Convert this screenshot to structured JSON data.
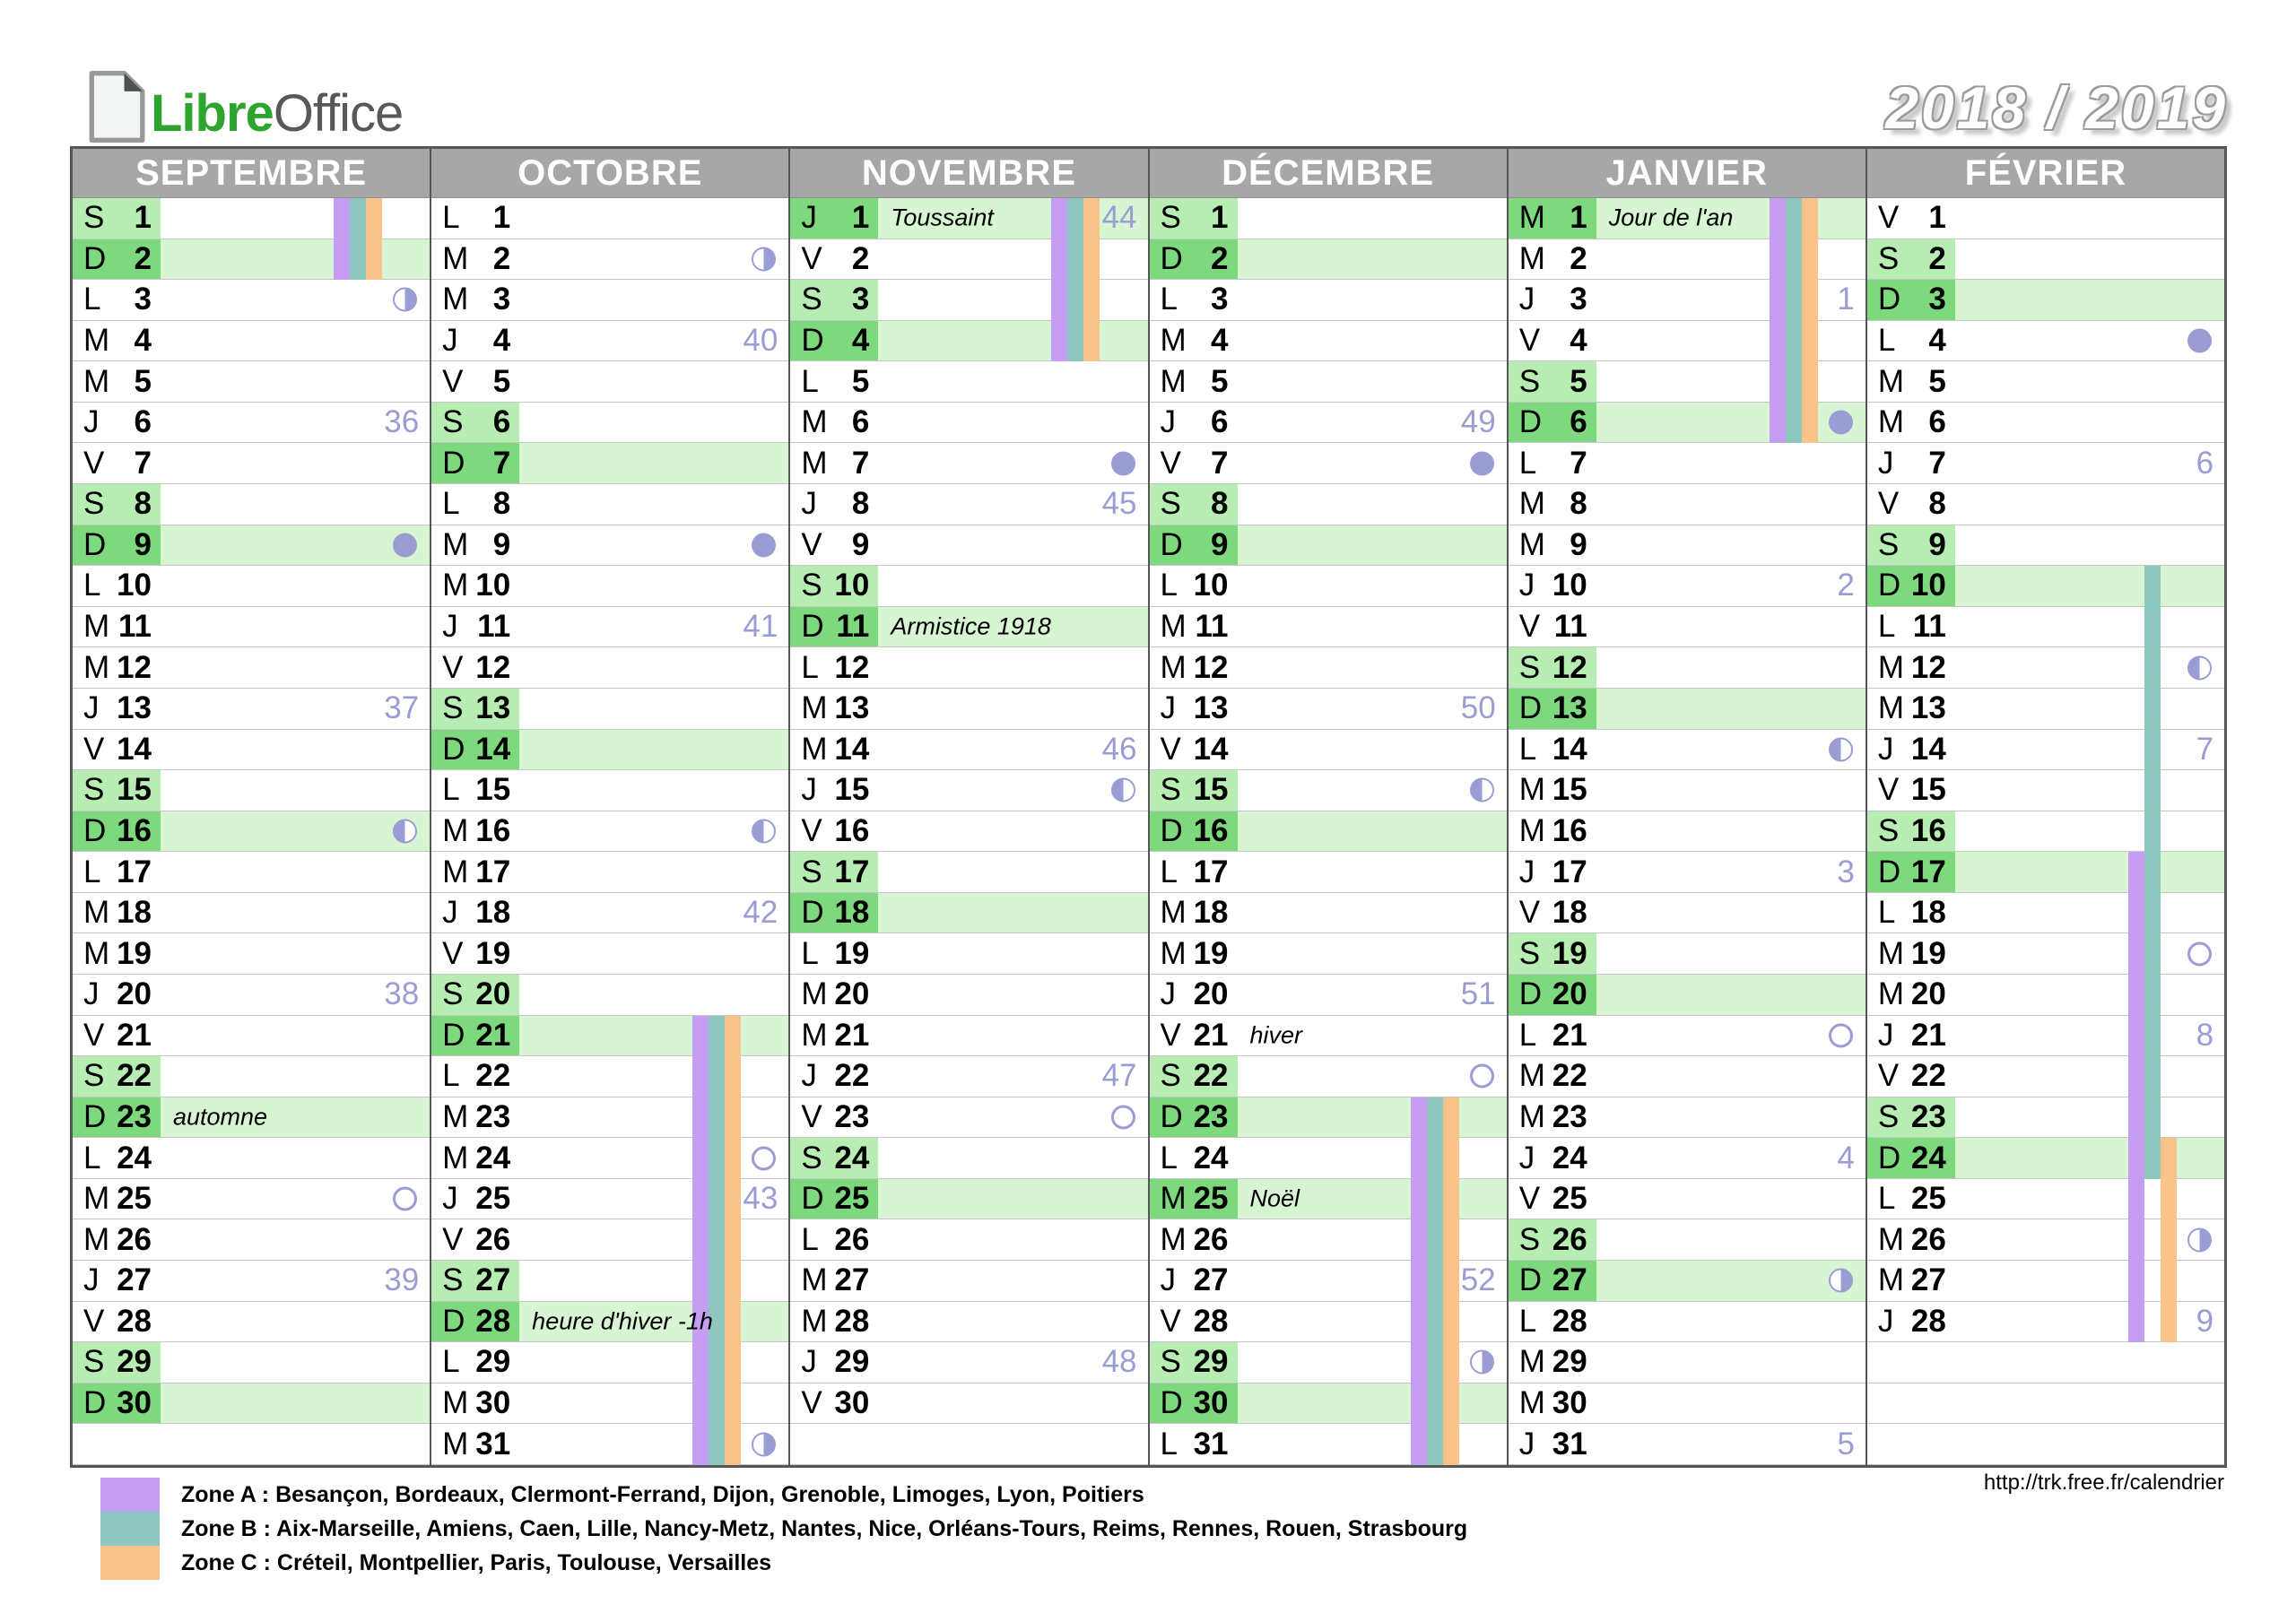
{
  "logo": {
    "libre": "Libre",
    "office": "Office"
  },
  "title": "2018 / 2019",
  "url": "http://trk.free.fr/calendrier",
  "colors": {
    "zoneA": "#c59ef1",
    "zoneB": "#8ec7c0",
    "zoneC": "#fbc38c",
    "sunday_label": "#7ed87e",
    "sunday_row": "#d7f5d2",
    "saturday_label": "#b7edb2",
    "header_bg": "#a7a7a7",
    "week_and_moon": "#999dd3"
  },
  "legend": [
    {
      "zone": "A",
      "color": "#c59ef1",
      "text": "Zone A : Besançon, Bordeaux, Clermont-Ferrand, Dijon, Grenoble, Limoges, Lyon, Poitiers"
    },
    {
      "zone": "B",
      "color": "#8ec7c0",
      "text": "Zone B : Aix-Marseille, Amiens, Caen, Lille, Nancy-Metz, Nantes, Nice, Orléans-Tours, Reims, Rennes, Rouen, Strasbourg"
    },
    {
      "zone": "C",
      "color": "#fbc38c",
      "text": "Zone C : Créteil, Montpellier, Paris, Toulouse, Versailles"
    }
  ],
  "months": [
    {
      "name": "SEPTEMBRE",
      "days": [
        {
          "d": 1,
          "w": "S"
        },
        {
          "d": 2,
          "w": "D"
        },
        {
          "d": 3,
          "w": "L",
          "moon": "last"
        },
        {
          "d": 4,
          "w": "M"
        },
        {
          "d": 5,
          "w": "M"
        },
        {
          "d": 6,
          "w": "J",
          "week": "36"
        },
        {
          "d": 7,
          "w": "V"
        },
        {
          "d": 8,
          "w": "S"
        },
        {
          "d": 9,
          "w": "D",
          "moon": "new"
        },
        {
          "d": 10,
          "w": "L"
        },
        {
          "d": 11,
          "w": "M"
        },
        {
          "d": 12,
          "w": "M"
        },
        {
          "d": 13,
          "w": "J",
          "week": "37"
        },
        {
          "d": 14,
          "w": "V"
        },
        {
          "d": 15,
          "w": "S"
        },
        {
          "d": 16,
          "w": "D",
          "moon": "first"
        },
        {
          "d": 17,
          "w": "L"
        },
        {
          "d": 18,
          "w": "M"
        },
        {
          "d": 19,
          "w": "M"
        },
        {
          "d": 20,
          "w": "J",
          "week": "38"
        },
        {
          "d": 21,
          "w": "V"
        },
        {
          "d": 22,
          "w": "S"
        },
        {
          "d": 23,
          "w": "D",
          "label": "automne"
        },
        {
          "d": 24,
          "w": "L"
        },
        {
          "d": 25,
          "w": "M",
          "moon": "full"
        },
        {
          "d": 26,
          "w": "M"
        },
        {
          "d": 27,
          "w": "J",
          "week": "39"
        },
        {
          "d": 28,
          "w": "V"
        },
        {
          "d": 29,
          "w": "S"
        },
        {
          "d": 30,
          "w": "D"
        }
      ],
      "stripes": [
        {
          "zone": "A",
          "from": 1,
          "to": 2
        },
        {
          "zone": "B",
          "from": 1,
          "to": 2
        },
        {
          "zone": "C",
          "from": 1,
          "to": 2
        }
      ]
    },
    {
      "name": "OCTOBRE",
      "days": [
        {
          "d": 1,
          "w": "L"
        },
        {
          "d": 2,
          "w": "M",
          "moon": "last"
        },
        {
          "d": 3,
          "w": "M"
        },
        {
          "d": 4,
          "w": "J",
          "week": "40"
        },
        {
          "d": 5,
          "w": "V"
        },
        {
          "d": 6,
          "w": "S"
        },
        {
          "d": 7,
          "w": "D"
        },
        {
          "d": 8,
          "w": "L"
        },
        {
          "d": 9,
          "w": "M",
          "moon": "new"
        },
        {
          "d": 10,
          "w": "M"
        },
        {
          "d": 11,
          "w": "J",
          "week": "41"
        },
        {
          "d": 12,
          "w": "V"
        },
        {
          "d": 13,
          "w": "S"
        },
        {
          "d": 14,
          "w": "D"
        },
        {
          "d": 15,
          "w": "L"
        },
        {
          "d": 16,
          "w": "M",
          "moon": "first"
        },
        {
          "d": 17,
          "w": "M"
        },
        {
          "d": 18,
          "w": "J",
          "week": "42"
        },
        {
          "d": 19,
          "w": "V"
        },
        {
          "d": 20,
          "w": "S"
        },
        {
          "d": 21,
          "w": "D"
        },
        {
          "d": 22,
          "w": "L"
        },
        {
          "d": 23,
          "w": "M"
        },
        {
          "d": 24,
          "w": "M",
          "moon": "full"
        },
        {
          "d": 25,
          "w": "J",
          "week": "43"
        },
        {
          "d": 26,
          "w": "V"
        },
        {
          "d": 27,
          "w": "S"
        },
        {
          "d": 28,
          "w": "D",
          "label": "heure d'hiver -1h"
        },
        {
          "d": 29,
          "w": "L"
        },
        {
          "d": 30,
          "w": "M"
        },
        {
          "d": 31,
          "w": "M",
          "moon": "last"
        }
      ],
      "stripes": [
        {
          "zone": "A",
          "from": 21,
          "to": 31
        },
        {
          "zone": "B",
          "from": 21,
          "to": 31
        },
        {
          "zone": "C",
          "from": 21,
          "to": 31
        }
      ]
    },
    {
      "name": "NOVEMBRE",
      "days": [
        {
          "d": 1,
          "w": "J",
          "holiday": true,
          "label": "Toussaint",
          "week": "44"
        },
        {
          "d": 2,
          "w": "V"
        },
        {
          "d": 3,
          "w": "S"
        },
        {
          "d": 4,
          "w": "D"
        },
        {
          "d": 5,
          "w": "L"
        },
        {
          "d": 6,
          "w": "M"
        },
        {
          "d": 7,
          "w": "M",
          "moon": "new"
        },
        {
          "d": 8,
          "w": "J",
          "week": "45"
        },
        {
          "d": 9,
          "w": "V"
        },
        {
          "d": 10,
          "w": "S"
        },
        {
          "d": 11,
          "w": "D",
          "label": "Armistice 1918"
        },
        {
          "d": 12,
          "w": "L"
        },
        {
          "d": 13,
          "w": "M"
        },
        {
          "d": 14,
          "w": "M",
          "week": "46"
        },
        {
          "d": 15,
          "w": "J",
          "moon": "first"
        },
        {
          "d": 16,
          "w": "V"
        },
        {
          "d": 17,
          "w": "S"
        },
        {
          "d": 18,
          "w": "D"
        },
        {
          "d": 19,
          "w": "L"
        },
        {
          "d": 20,
          "w": "M"
        },
        {
          "d": 21,
          "w": "M"
        },
        {
          "d": 22,
          "w": "J",
          "week": "47"
        },
        {
          "d": 23,
          "w": "V",
          "moon": "full"
        },
        {
          "d": 24,
          "w": "S"
        },
        {
          "d": 25,
          "w": "D"
        },
        {
          "d": 26,
          "w": "L"
        },
        {
          "d": 27,
          "w": "M"
        },
        {
          "d": 28,
          "w": "M"
        },
        {
          "d": 29,
          "w": "J",
          "week": "48"
        },
        {
          "d": 30,
          "w": "V"
        }
      ],
      "stripes": [
        {
          "zone": "A",
          "from": 1,
          "to": 4
        },
        {
          "zone": "B",
          "from": 1,
          "to": 4
        },
        {
          "zone": "C",
          "from": 1,
          "to": 4
        }
      ]
    },
    {
      "name": "DÉCEMBRE",
      "days": [
        {
          "d": 1,
          "w": "S"
        },
        {
          "d": 2,
          "w": "D"
        },
        {
          "d": 3,
          "w": "L"
        },
        {
          "d": 4,
          "w": "M"
        },
        {
          "d": 5,
          "w": "M"
        },
        {
          "d": 6,
          "w": "J",
          "week": "49"
        },
        {
          "d": 7,
          "w": "V",
          "moon": "new"
        },
        {
          "d": 8,
          "w": "S"
        },
        {
          "d": 9,
          "w": "D"
        },
        {
          "d": 10,
          "w": "L"
        },
        {
          "d": 11,
          "w": "M"
        },
        {
          "d": 12,
          "w": "M"
        },
        {
          "d": 13,
          "w": "J",
          "week": "50"
        },
        {
          "d": 14,
          "w": "V"
        },
        {
          "d": 15,
          "w": "S",
          "moon": "first"
        },
        {
          "d": 16,
          "w": "D"
        },
        {
          "d": 17,
          "w": "L"
        },
        {
          "d": 18,
          "w": "M"
        },
        {
          "d": 19,
          "w": "M"
        },
        {
          "d": 20,
          "w": "J",
          "week": "51"
        },
        {
          "d": 21,
          "w": "V",
          "label": "hiver"
        },
        {
          "d": 22,
          "w": "S",
          "moon": "full"
        },
        {
          "d": 23,
          "w": "D"
        },
        {
          "d": 24,
          "w": "L"
        },
        {
          "d": 25,
          "w": "M",
          "holiday": true,
          "label": "Noël"
        },
        {
          "d": 26,
          "w": "M"
        },
        {
          "d": 27,
          "w": "J",
          "week": "52"
        },
        {
          "d": 28,
          "w": "V"
        },
        {
          "d": 29,
          "w": "S",
          "moon": "last"
        },
        {
          "d": 30,
          "w": "D"
        },
        {
          "d": 31,
          "w": "L"
        }
      ],
      "stripes": [
        {
          "zone": "A",
          "from": 23,
          "to": 31
        },
        {
          "zone": "B",
          "from": 23,
          "to": 31
        },
        {
          "zone": "C",
          "from": 23,
          "to": 31
        }
      ]
    },
    {
      "name": "JANVIER",
      "days": [
        {
          "d": 1,
          "w": "M",
          "holiday": true,
          "label": "Jour de l'an"
        },
        {
          "d": 2,
          "w": "M"
        },
        {
          "d": 3,
          "w": "J",
          "week": "1"
        },
        {
          "d": 4,
          "w": "V"
        },
        {
          "d": 5,
          "w": "S"
        },
        {
          "d": 6,
          "w": "D",
          "moon": "new"
        },
        {
          "d": 7,
          "w": "L"
        },
        {
          "d": 8,
          "w": "M"
        },
        {
          "d": 9,
          "w": "M"
        },
        {
          "d": 10,
          "w": "J",
          "week": "2"
        },
        {
          "d": 11,
          "w": "V"
        },
        {
          "d": 12,
          "w": "S"
        },
        {
          "d": 13,
          "w": "D"
        },
        {
          "d": 14,
          "w": "L",
          "moon": "first"
        },
        {
          "d": 15,
          "w": "M"
        },
        {
          "d": 16,
          "w": "M"
        },
        {
          "d": 17,
          "w": "J",
          "week": "3"
        },
        {
          "d": 18,
          "w": "V"
        },
        {
          "d": 19,
          "w": "S"
        },
        {
          "d": 20,
          "w": "D"
        },
        {
          "d": 21,
          "w": "L",
          "moon": "full"
        },
        {
          "d": 22,
          "w": "M"
        },
        {
          "d": 23,
          "w": "M"
        },
        {
          "d": 24,
          "w": "J",
          "week": "4"
        },
        {
          "d": 25,
          "w": "V"
        },
        {
          "d": 26,
          "w": "S"
        },
        {
          "d": 27,
          "w": "D",
          "moon": "last"
        },
        {
          "d": 28,
          "w": "L"
        },
        {
          "d": 29,
          "w": "M"
        },
        {
          "d": 30,
          "w": "M"
        },
        {
          "d": 31,
          "w": "J",
          "week": "5"
        }
      ],
      "stripes": [
        {
          "zone": "A",
          "from": 1,
          "to": 6
        },
        {
          "zone": "B",
          "from": 1,
          "to": 6
        },
        {
          "zone": "C",
          "from": 1,
          "to": 6
        }
      ]
    },
    {
      "name": "FÉVRIER",
      "days": [
        {
          "d": 1,
          "w": "V"
        },
        {
          "d": 2,
          "w": "S"
        },
        {
          "d": 3,
          "w": "D"
        },
        {
          "d": 4,
          "w": "L",
          "moon": "new"
        },
        {
          "d": 5,
          "w": "M"
        },
        {
          "d": 6,
          "w": "M"
        },
        {
          "d": 7,
          "w": "J",
          "week": "6"
        },
        {
          "d": 8,
          "w": "V"
        },
        {
          "d": 9,
          "w": "S"
        },
        {
          "d": 10,
          "w": "D"
        },
        {
          "d": 11,
          "w": "L"
        },
        {
          "d": 12,
          "w": "M",
          "moon": "first"
        },
        {
          "d": 13,
          "w": "M"
        },
        {
          "d": 14,
          "w": "J",
          "week": "7"
        },
        {
          "d": 15,
          "w": "V"
        },
        {
          "d": 16,
          "w": "S"
        },
        {
          "d": 17,
          "w": "D"
        },
        {
          "d": 18,
          "w": "L"
        },
        {
          "d": 19,
          "w": "M",
          "moon": "full"
        },
        {
          "d": 20,
          "w": "M"
        },
        {
          "d": 21,
          "w": "J",
          "week": "8"
        },
        {
          "d": 22,
          "w": "V"
        },
        {
          "d": 23,
          "w": "S"
        },
        {
          "d": 24,
          "w": "D"
        },
        {
          "d": 25,
          "w": "L"
        },
        {
          "d": 26,
          "w": "M",
          "moon": "last"
        },
        {
          "d": 27,
          "w": "M"
        },
        {
          "d": 28,
          "w": "J",
          "week": "9"
        }
      ],
      "stripes": [
        {
          "zone": "B",
          "from": 10,
          "to": 24
        },
        {
          "zone": "A",
          "from": 17,
          "to": 28
        },
        {
          "zone": "C",
          "from": 24,
          "to": 28
        }
      ]
    }
  ]
}
